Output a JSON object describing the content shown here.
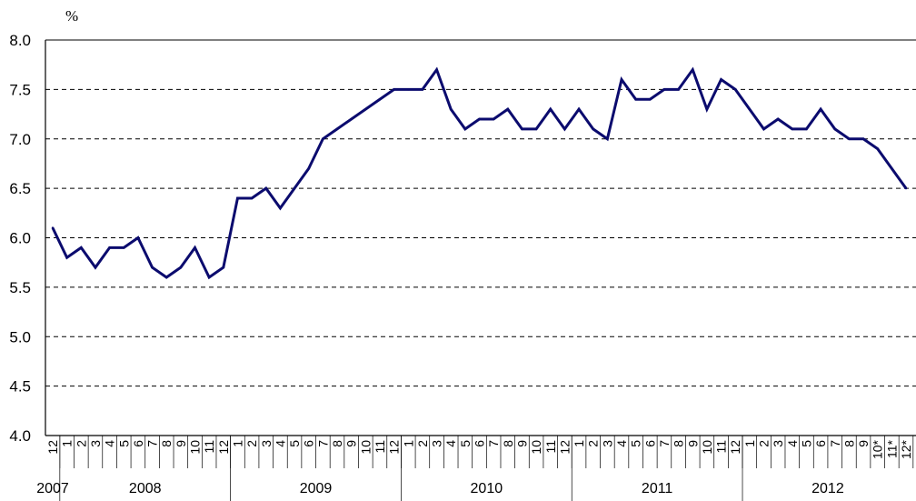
{
  "chart_data": {
    "type": "line",
    "title": "",
    "xlabel": "",
    "ylabel": "%",
    "ylim": [
      4.0,
      8.0
    ],
    "yticks": [
      "4.0",
      "4.5",
      "5.0",
      "5.5",
      "6.0",
      "6.5",
      "7.0",
      "7.5",
      "8.0"
    ],
    "grid": "horizontal dashed",
    "colors": {
      "line": "#0b0b6e",
      "grid": "#000000",
      "axis": "#000000",
      "frame": "#808080"
    },
    "months": [
      "12",
      "1",
      "2",
      "3",
      "4",
      "5",
      "6",
      "7",
      "8",
      "9",
      "10",
      "11",
      "12",
      "1",
      "2",
      "3",
      "4",
      "5",
      "6",
      "7",
      "8",
      "9",
      "10",
      "11",
      "12",
      "1",
      "2",
      "3",
      "4",
      "5",
      "6",
      "7",
      "8",
      "9",
      "10",
      "11",
      "12",
      "1",
      "2",
      "3",
      "4",
      "5",
      "6",
      "7",
      "8",
      "9",
      "10",
      "11",
      "12",
      "1",
      "2",
      "3",
      "4",
      "5",
      "6",
      "7",
      "8",
      "9",
      "10*",
      "11*",
      "12*"
    ],
    "years": [
      {
        "label": "2007",
        "months": 1
      },
      {
        "label": "2008",
        "months": 12
      },
      {
        "label": "2009",
        "months": 12
      },
      {
        "label": "2010",
        "months": 12
      },
      {
        "label": "2011",
        "months": 12
      },
      {
        "label": "2012",
        "months": 12
      }
    ],
    "series": [
      {
        "values": [
          6.1,
          5.8,
          5.9,
          5.7,
          5.9,
          5.9,
          6.0,
          5.7,
          5.6,
          5.7,
          5.9,
          5.6,
          5.7,
          6.4,
          6.4,
          6.5,
          6.3,
          6.5,
          6.7,
          7.0,
          7.1,
          7.2,
          7.3,
          7.4,
          7.5,
          7.5,
          7.5,
          7.7,
          7.3,
          7.1,
          7.2,
          7.2,
          7.3,
          7.1,
          7.1,
          7.3,
          7.1,
          7.3,
          7.1,
          7.0,
          7.6,
          7.4,
          7.4,
          7.5,
          7.5,
          7.7,
          7.3,
          7.6,
          7.5,
          7.3,
          7.1,
          7.2,
          7.1,
          7.1,
          7.3,
          7.1,
          7.0,
          7.0,
          6.9,
          6.7,
          6.5
        ]
      }
    ]
  }
}
